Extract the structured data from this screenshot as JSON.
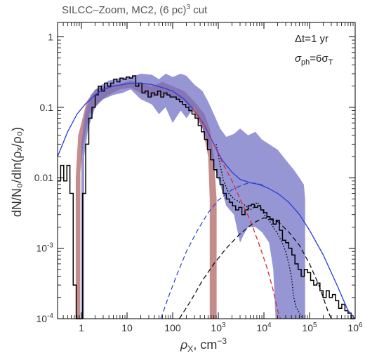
{
  "chart_data": {
    "type": "line",
    "title": "SILCC–Zoom, MC2, (6 pc)",
    "title_sup": "3",
    "title_suffix": " cut",
    "xlabel_main": "ρ",
    "xlabel_sub": "X",
    "xlabel_unit": ", cm",
    "xlabel_unit_sup": "−3",
    "ylabel": "dN/N₀/dln(ρₓ/ρ₀)",
    "annotations": [
      "Δt=1 yr",
      "σ_ph=6σ_T"
    ],
    "annotation_dt": "Δt=1 yr",
    "annotation_sigma_main": "σ",
    "annotation_sigma_sub1": "ph",
    "annotation_sigma_mid": "=6σ",
    "annotation_sigma_sub2": "T",
    "x_scale": "log",
    "y_scale": "log",
    "xlim": [
      0.3,
      1000000
    ],
    "ylim": [
      0.0001,
      1.6
    ],
    "x_ticks": [
      {
        "v": 1,
        "label": "1"
      },
      {
        "v": 10,
        "label": "10"
      },
      {
        "v": 100,
        "label": "100"
      },
      {
        "v": 1000,
        "base": "10",
        "exp": "3"
      },
      {
        "v": 10000,
        "base": "10",
        "exp": "4"
      },
      {
        "v": 100000,
        "base": "10",
        "exp": "5"
      },
      {
        "v": 1000000,
        "base": "10",
        "exp": "6"
      }
    ],
    "y_ticks": [
      {
        "v": 1,
        "label": "1"
      },
      {
        "v": 0.1,
        "label": "0.1"
      },
      {
        "v": 0.01,
        "label": "0.01"
      },
      {
        "v": 0.001,
        "base": "10",
        "exp": "-3"
      },
      {
        "v": 0.0001,
        "base": "10",
        "exp": "-4"
      }
    ],
    "colors": {
      "red_band": "#b5706e",
      "blue_band": "#6e6ec4",
      "blue_fit": "#2a3cd8",
      "red_dash": "#e0282a",
      "blue_dash": "#2a3cd8",
      "black": "#000000"
    },
    "series": [
      {
        "kind": "band",
        "color": "red",
        "upper": [
          [
            0.75,
            0.0001
          ],
          [
            0.75,
            0.01
          ],
          [
            0.85,
            0.04
          ],
          [
            1.0,
            0.06
          ],
          [
            1.3,
            0.12
          ],
          [
            2,
            0.18
          ],
          [
            3,
            0.2
          ],
          [
            5,
            0.21
          ],
          [
            8,
            0.22
          ],
          [
            12,
            0.24
          ],
          [
            20,
            0.22
          ],
          [
            35,
            0.2
          ],
          [
            60,
            0.23
          ],
          [
            100,
            0.2
          ],
          [
            180,
            0.17
          ],
          [
            300,
            0.12
          ],
          [
            500,
            0.08
          ],
          [
            650,
            0.05
          ],
          [
            800,
            0.02
          ],
          [
            920,
            0.005
          ],
          [
            920,
            0.0001
          ]
        ],
        "lower": [
          [
            0.95,
            0.0001
          ],
          [
            0.95,
            0.012
          ],
          [
            1.1,
            0.03
          ],
          [
            1.5,
            0.08
          ],
          [
            2.5,
            0.12
          ],
          [
            4,
            0.15
          ],
          [
            7,
            0.18
          ],
          [
            12,
            0.19
          ],
          [
            20,
            0.16
          ],
          [
            35,
            0.14
          ],
          [
            60,
            0.15
          ],
          [
            100,
            0.14
          ],
          [
            180,
            0.12
          ],
          [
            300,
            0.08
          ],
          [
            450,
            0.05
          ],
          [
            600,
            0.02
          ],
          [
            650,
            0.005
          ],
          [
            650,
            0.0001
          ]
        ]
      },
      {
        "kind": "band",
        "color": "blue",
        "upper": [
          [
            1.0,
            0.0001
          ],
          [
            1.0,
            0.03
          ],
          [
            1.2,
            0.08
          ],
          [
            1.6,
            0.15
          ],
          [
            2.5,
            0.2
          ],
          [
            4,
            0.24
          ],
          [
            7,
            0.26
          ],
          [
            12,
            0.27
          ],
          [
            20,
            0.3
          ],
          [
            35,
            0.29
          ],
          [
            50,
            0.25
          ],
          [
            70,
            0.3
          ],
          [
            100,
            0.27
          ],
          [
            150,
            0.3
          ],
          [
            200,
            0.28
          ],
          [
            300,
            0.21
          ],
          [
            450,
            0.17
          ],
          [
            600,
            0.12
          ],
          [
            800,
            0.08
          ],
          [
            1100,
            0.05
          ],
          [
            1500,
            0.038
          ],
          [
            2200,
            0.042
          ],
          [
            3000,
            0.05
          ],
          [
            4500,
            0.04
          ],
          [
            6500,
            0.045
          ],
          [
            9000,
            0.035
          ],
          [
            13000,
            0.03
          ],
          [
            20000,
            0.025
          ],
          [
            30000,
            0.018
          ],
          [
            45000,
            0.013
          ],
          [
            60000,
            0.01
          ],
          [
            75000,
            0.008
          ],
          [
            80000,
            0.005
          ],
          [
            80000,
            0.0001
          ]
        ],
        "lower": [
          [
            1.15,
            0.0001
          ],
          [
            1.15,
            0.02
          ],
          [
            1.4,
            0.05
          ],
          [
            2,
            0.1
          ],
          [
            3,
            0.13
          ],
          [
            5,
            0.15
          ],
          [
            8,
            0.16
          ],
          [
            12,
            0.18
          ],
          [
            20,
            0.13
          ],
          [
            35,
            0.11
          ],
          [
            50,
            0.08
          ],
          [
            70,
            0.1
          ],
          [
            100,
            0.06
          ],
          [
            150,
            0.09
          ],
          [
            200,
            0.07
          ],
          [
            300,
            0.1
          ],
          [
            450,
            0.05
          ],
          [
            600,
            0.03
          ],
          [
            800,
            0.015
          ],
          [
            1100,
            0.008
          ],
          [
            1500,
            0.004
          ],
          [
            2200,
            0.003
          ],
          [
            3000,
            0.0012
          ],
          [
            3500,
            0.0015
          ],
          [
            4500,
            0.002
          ],
          [
            6500,
            0.002
          ],
          [
            9000,
            0.0017
          ],
          [
            13000,
            0.0012
          ],
          [
            16000,
            0.0005
          ],
          [
            18000,
            0.0001
          ]
        ]
      },
      {
        "kind": "step",
        "name": "histogram",
        "style": "solid",
        "edges": [
          0.3,
          0.35,
          0.41,
          0.48,
          0.56,
          0.66,
          0.77,
          0.9,
          1.06,
          1.24,
          1.45,
          1.7,
          2,
          2.34,
          2.74,
          3.2,
          3.75,
          4.4,
          5.1,
          6,
          7,
          8.2,
          9.6,
          11.3,
          13.2,
          15.5,
          18.1,
          21.2,
          24.8,
          29,
          34,
          40,
          46.7,
          54.7,
          64,
          75,
          87.8,
          103,
          120,
          141,
          165,
          193,
          226,
          265,
          310,
          363,
          425,
          497,
          582,
          681,
          797,
          933,
          1092,
          1279,
          1497,
          1752,
          2051,
          2401,
          2811,
          3290,
          3852,
          4509,
          5278,
          6179,
          7233,
          8467,
          9912,
          11603,
          13583,
          15901,
          18614,
          21790,
          25508,
          29860,
          34955,
          40919,
          47900,
          56073,
          65640,
          76840,
          89950,
          105300,
          123265,
          144298,
          168919,
          197740,
          231480,
          270977,
          317213,
          371338,
          434699,
          508870,
          595700,
          697330,
          816300,
          955600
        ],
        "values": [
          0.009,
          0.015,
          0.009,
          0.015,
          0.006,
          0.0003,
          0.0001,
          0.0001,
          0.006,
          0.03,
          0.07,
          0.1,
          0.15,
          0.2,
          0.17,
          0.22,
          0.2,
          0.22,
          0.25,
          0.23,
          0.26,
          0.25,
          0.27,
          0.26,
          0.28,
          0.2,
          0.22,
          0.16,
          0.17,
          0.14,
          0.16,
          0.15,
          0.17,
          0.14,
          0.16,
          0.15,
          0.14,
          0.14,
          0.13,
          0.12,
          0.11,
          0.1,
          0.09,
          0.08,
          0.07,
          0.055,
          0.045,
          0.035,
          0.025,
          0.018,
          0.013,
          0.01,
          0.008,
          0.006,
          0.005,
          0.0045,
          0.004,
          0.0035,
          0.0038,
          0.003,
          0.0035,
          0.004,
          0.0042,
          0.0038,
          0.004,
          0.0035,
          0.0032,
          0.0028,
          0.0026,
          0.0022,
          0.0025,
          0.0018,
          0.0013,
          0.0012,
          0.001,
          0.0008,
          0.0006,
          0.0005,
          0.0004,
          0.0005,
          0.00045,
          0.00035,
          0.0003,
          0.00032,
          0.00025,
          0.0002,
          0.00025,
          0.0002,
          0.00022,
          0.00018,
          0.00014,
          0.00016,
          0.00013,
          0.00012,
          0.0001
        ]
      },
      {
        "kind": "line",
        "name": "histogram-dotted",
        "style": "dotted",
        "points": [
          [
            900,
            0.03
          ],
          [
            1100,
            0.015
          ],
          [
            1300,
            0.009
          ],
          [
            1700,
            0.006
          ],
          [
            2200,
            0.005
          ],
          [
            3000,
            0.0045
          ],
          [
            4000,
            0.004
          ],
          [
            5000,
            0.0035
          ],
          [
            6000,
            0.0038
          ],
          [
            7000,
            0.0045
          ],
          [
            8000,
            0.0042
          ],
          [
            9000,
            0.0035
          ],
          [
            10000,
            0.003
          ],
          [
            11000,
            0.0028
          ],
          [
            13000,
            0.0025
          ],
          [
            16000,
            0.002
          ],
          [
            20000,
            0.0016
          ],
          [
            25000,
            0.0012
          ],
          [
            30000,
            0.0009
          ],
          [
            35000,
            0.0006
          ],
          [
            40000,
            0.0004
          ],
          [
            45000,
            0.0002
          ],
          [
            50000,
            0.00015
          ],
          [
            60000,
            0.00012
          ],
          [
            70000,
            0.0001
          ]
        ]
      },
      {
        "kind": "line",
        "name": "blue-fit",
        "style": "solid",
        "points": [
          [
            0.3,
            0.02
          ],
          [
            0.5,
            0.045
          ],
          [
            0.8,
            0.08
          ],
          [
            1.2,
            0.11
          ],
          [
            2,
            0.15
          ],
          [
            3,
            0.18
          ],
          [
            5,
            0.2
          ],
          [
            8,
            0.21
          ],
          [
            12,
            0.22
          ],
          [
            20,
            0.22
          ],
          [
            35,
            0.21
          ],
          [
            60,
            0.19
          ],
          [
            100,
            0.17
          ],
          [
            180,
            0.13
          ],
          [
            300,
            0.09
          ],
          [
            500,
            0.055
          ],
          [
            800,
            0.03
          ],
          [
            1200,
            0.018
          ],
          [
            2000,
            0.012
          ],
          [
            3000,
            0.0095
          ],
          [
            5000,
            0.0085
          ],
          [
            8000,
            0.008
          ],
          [
            12000,
            0.0072
          ],
          [
            20000,
            0.006
          ],
          [
            35000,
            0.0045
          ],
          [
            60000,
            0.003
          ],
          [
            100000,
            0.0018
          ],
          [
            200000,
            0.0008
          ],
          [
            400000,
            0.0003
          ],
          [
            700000,
            0.00013
          ],
          [
            1000000,
            0.0001
          ]
        ]
      },
      {
        "kind": "line",
        "name": "red-dashed",
        "style": "dashed",
        "points": [
          [
            300,
            0.09
          ],
          [
            500,
            0.055
          ],
          [
            800,
            0.03
          ],
          [
            1200,
            0.017
          ],
          [
            2000,
            0.009
          ],
          [
            3000,
            0.005
          ],
          [
            5000,
            0.0025
          ],
          [
            8000,
            0.0011
          ],
          [
            12000,
            0.0005
          ],
          [
            16000,
            0.00025
          ],
          [
            20000,
            0.00013
          ],
          [
            23000,
            0.0001
          ]
        ]
      },
      {
        "kind": "line",
        "name": "blue-dashed",
        "style": "dashed",
        "points": [
          [
            55,
            0.0001
          ],
          [
            80,
            0.0002
          ],
          [
            120,
            0.0004
          ],
          [
            200,
            0.0009
          ],
          [
            350,
            0.0018
          ],
          [
            600,
            0.0032
          ],
          [
            1000,
            0.0048
          ],
          [
            2000,
            0.0068
          ],
          [
            3500,
            0.008
          ],
          [
            5000,
            0.0085
          ],
          [
            7000,
            0.0083
          ],
          [
            10000,
            0.0078
          ]
        ]
      },
      {
        "kind": "line",
        "name": "black-dashed",
        "style": "dashed",
        "points": [
          [
            140,
            0.0001
          ],
          [
            250,
            0.00018
          ],
          [
            450,
            0.00035
          ],
          [
            800,
            0.0006
          ],
          [
            1500,
            0.001
          ],
          [
            3000,
            0.0016
          ],
          [
            6000,
            0.0023
          ],
          [
            10000,
            0.0027
          ],
          [
            20000,
            0.0024
          ],
          [
            35000,
            0.0017
          ],
          [
            60000,
            0.0011
          ],
          [
            100000,
            0.0006
          ],
          [
            160000,
            0.0003
          ],
          [
            250000,
            0.00013
          ],
          [
            300000,
            0.0001
          ]
        ]
      }
    ]
  }
}
